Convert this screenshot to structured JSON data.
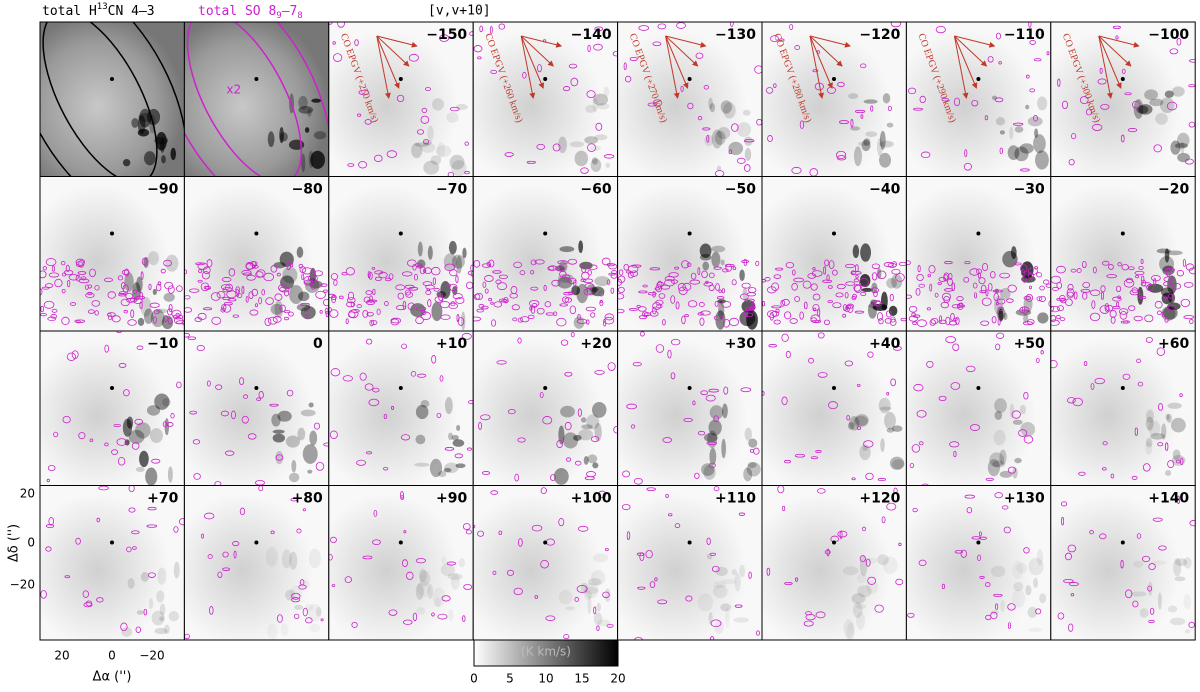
{
  "header": {
    "h13cn": {
      "prefix": "total H",
      "sup": "13",
      "suffix": "CN 4–3"
    },
    "so": {
      "prefix": "total SO 8",
      "sub1": "9",
      "mid": "–7",
      "sub2": "8"
    },
    "range": "[v,v+10]"
  },
  "scale_note": "x2",
  "panels": [
    "−150",
    "−140",
    "−130",
    "−120",
    "−110",
    "−100",
    "−90",
    "−80",
    "−70",
    "−60",
    "−50",
    "−40",
    "−30",
    "−20",
    "−10",
    "0",
    "+10",
    "+20",
    "+30",
    "+40",
    "+50",
    "+60",
    "+70",
    "+80",
    "+90",
    "+100",
    "+110",
    "+120",
    "+130",
    "+140"
  ],
  "annotations": [
    "CO EPGV (+250 km/s)",
    "CO EPGV (+260 km/s)",
    "CO EPGV (+270 km/s)",
    "CO EPGV (+280 km/s)",
    "CO EPGV (+290 km/s)",
    "CO EPGV (+300 km/s)"
  ],
  "axes": {
    "xlabel": "Δα ('')",
    "ylabel": "Δδ ('')",
    "xticks": [
      "20",
      "0",
      "−20"
    ],
    "yticks": [
      "20",
      "0",
      "−20"
    ]
  },
  "colorbar": {
    "label": "(K km/s)",
    "ticks": [
      "0",
      "5",
      "10",
      "15",
      "20"
    ]
  }
}
